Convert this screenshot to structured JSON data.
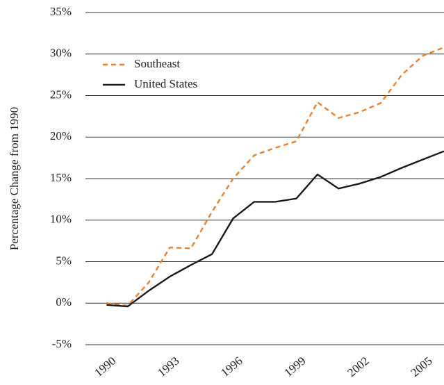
{
  "chart_data": {
    "type": "line",
    "y_label": "Percentage Change from 1990",
    "x": [
      1990,
      1991,
      1992,
      1993,
      1994,
      1995,
      1996,
      1997,
      1998,
      1999,
      2000,
      2001,
      2002,
      2003,
      2004,
      2005,
      2006
    ],
    "series": [
      {
        "name": "Southeast",
        "color": "#e8822e",
        "dash": true,
        "values": [
          0,
          -0.3,
          2.5,
          6.7,
          6.6,
          11,
          15,
          17.8,
          18.7,
          19.5,
          24.2,
          22.3,
          23,
          24.1,
          27.5,
          29.8,
          30.8
        ]
      },
      {
        "name": "United States",
        "color": "#1a1a1a",
        "dash": false,
        "values": [
          -0.2,
          -0.4,
          1.5,
          3.2,
          4.6,
          5.9,
          10.2,
          12.2,
          12.2,
          12.6,
          15.5,
          13.8,
          14.4,
          15.2,
          16.3,
          17.3,
          18.3
        ]
      }
    ],
    "xlim": [
      1989,
      2006
    ],
    "xticks": [
      1990,
      1993,
      1996,
      1999,
      2002,
      2005
    ],
    "ylim": [
      -5,
      35
    ],
    "yticks": [
      {
        "value": -5,
        "label": "-5%"
      },
      {
        "value": 0,
        "label": "0%"
      },
      {
        "value": 5,
        "label": "5%"
      },
      {
        "value": 10,
        "label": "10%"
      },
      {
        "value": 15,
        "label": "15%"
      },
      {
        "value": 20,
        "label": "20%"
      },
      {
        "value": 25,
        "label": "25%"
      },
      {
        "value": 30,
        "label": "30%"
      },
      {
        "value": 35,
        "label": "35%"
      }
    ],
    "grid": true,
    "legend": "upper-left"
  }
}
